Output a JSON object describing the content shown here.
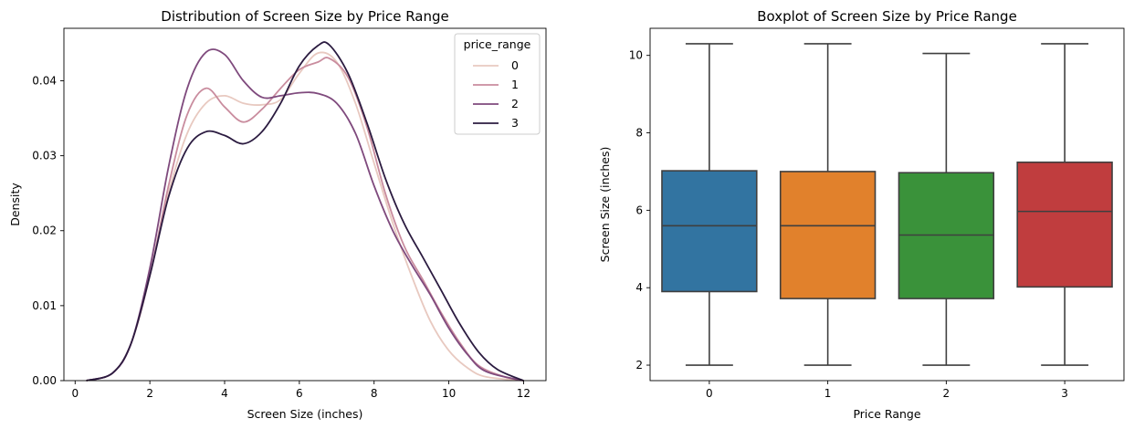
{
  "chart_data": [
    {
      "type": "line",
      "subtype": "kde",
      "title": "Distribution of Screen Size by Price Range",
      "xlabel": "Screen Size (inches)",
      "ylabel": "Density",
      "xlim": [
        -0.3,
        12.6
      ],
      "ylim": [
        0,
        0.047
      ],
      "xticks": [
        0,
        2,
        4,
        6,
        8,
        10,
        12
      ],
      "yticks": [
        0.0,
        0.01,
        0.02,
        0.03,
        0.04
      ],
      "ytick_labels": [
        "0.00",
        "0.01",
        "0.02",
        "0.03",
        "0.04"
      ],
      "legend": {
        "title": "price_range",
        "position": "top-right"
      },
      "series": [
        {
          "name": "0",
          "color": "#e8c9c0",
          "points": [
            [
              0.3,
              0.0
            ],
            [
              1,
              0.001
            ],
            [
              1.5,
              0.005
            ],
            [
              2,
              0.014
            ],
            [
              2.5,
              0.025
            ],
            [
              3,
              0.033
            ],
            [
              3.5,
              0.037
            ],
            [
              4,
              0.038
            ],
            [
              4.5,
              0.037
            ],
            [
              5,
              0.0368
            ],
            [
              5.5,
              0.0375
            ],
            [
              6,
              0.041
            ],
            [
              6.5,
              0.0437
            ],
            [
              7,
              0.0425
            ],
            [
              7.5,
              0.037
            ],
            [
              8,
              0.029
            ],
            [
              8.5,
              0.021
            ],
            [
              9,
              0.014
            ],
            [
              9.5,
              0.008
            ],
            [
              10,
              0.004
            ],
            [
              10.5,
              0.0017
            ],
            [
              11,
              0.0005
            ],
            [
              12,
              0.0
            ]
          ]
        },
        {
          "name": "1",
          "color": "#c98c9e",
          "points": [
            [
              0.3,
              0.0
            ],
            [
              1,
              0.001
            ],
            [
              1.5,
              0.005
            ],
            [
              2,
              0.014
            ],
            [
              2.5,
              0.026
            ],
            [
              3,
              0.0355
            ],
            [
              3.5,
              0.039
            ],
            [
              4,
              0.0365
            ],
            [
              4.5,
              0.0345
            ],
            [
              5,
              0.0362
            ],
            [
              5.5,
              0.039
            ],
            [
              6,
              0.0415
            ],
            [
              6.5,
              0.0425
            ],
            [
              6.8,
              0.043
            ],
            [
              7.3,
              0.0405
            ],
            [
              7.8,
              0.034
            ],
            [
              8.3,
              0.025
            ],
            [
              8.8,
              0.018
            ],
            [
              9.3,
              0.0135
            ],
            [
              9.8,
              0.009
            ],
            [
              10.3,
              0.005
            ],
            [
              10.8,
              0.002
            ],
            [
              11.5,
              0.0005
            ],
            [
              12,
              0.0
            ]
          ]
        },
        {
          "name": "2",
          "color": "#7f4a7d",
          "points": [
            [
              0.3,
              0.0
            ],
            [
              1,
              0.001
            ],
            [
              1.5,
              0.005
            ],
            [
              2,
              0.015
            ],
            [
              2.5,
              0.0285
            ],
            [
              3,
              0.039
            ],
            [
              3.5,
              0.0438
            ],
            [
              4,
              0.0435
            ],
            [
              4.5,
              0.04
            ],
            [
              5,
              0.0378
            ],
            [
              5.5,
              0.038
            ],
            [
              6,
              0.0384
            ],
            [
              6.5,
              0.0383
            ],
            [
              7,
              0.037
            ],
            [
              7.5,
              0.033
            ],
            [
              8,
              0.026
            ],
            [
              8.5,
              0.02
            ],
            [
              9,
              0.0155
            ],
            [
              9.5,
              0.0115
            ],
            [
              10,
              0.007
            ],
            [
              10.5,
              0.0035
            ],
            [
              11,
              0.0012
            ],
            [
              12,
              0.0
            ]
          ]
        },
        {
          "name": "3",
          "color": "#2b1b40",
          "points": [
            [
              0.3,
              0.0
            ],
            [
              1,
              0.001
            ],
            [
              1.5,
              0.005
            ],
            [
              2,
              0.014
            ],
            [
              2.5,
              0.0245
            ],
            [
              3,
              0.031
            ],
            [
              3.5,
              0.0332
            ],
            [
              4,
              0.0327
            ],
            [
              4.5,
              0.0316
            ],
            [
              5,
              0.0332
            ],
            [
              5.5,
              0.037
            ],
            [
              6,
              0.042
            ],
            [
              6.5,
              0.0447
            ],
            [
              6.8,
              0.0448
            ],
            [
              7.3,
              0.041
            ],
            [
              7.8,
              0.0345
            ],
            [
              8.3,
              0.027
            ],
            [
              8.8,
              0.021
            ],
            [
              9.3,
              0.0165
            ],
            [
              9.8,
              0.012
            ],
            [
              10.3,
              0.0075
            ],
            [
              10.8,
              0.0038
            ],
            [
              11.3,
              0.0015
            ],
            [
              12,
              0.0
            ]
          ]
        }
      ]
    },
    {
      "type": "boxplot",
      "title": "Boxplot of Screen Size by Price Range",
      "xlabel": "Price Range",
      "ylabel": "Screen Size (inches)",
      "ylim": [
        1.6,
        10.7
      ],
      "yticks": [
        2,
        4,
        6,
        8,
        10
      ],
      "categories": [
        "0",
        "1",
        "2",
        "3"
      ],
      "boxes": [
        {
          "category": "0",
          "min": 2.0,
          "q1": 3.9,
          "median": 5.6,
          "q3": 7.02,
          "max": 10.3,
          "color": "#3274a1"
        },
        {
          "category": "1",
          "min": 2.0,
          "q1": 3.72,
          "median": 5.6,
          "q3": 7.0,
          "max": 10.3,
          "color": "#e1812c"
        },
        {
          "category": "2",
          "min": 2.0,
          "q1": 3.72,
          "median": 5.36,
          "q3": 6.97,
          "max": 10.05,
          "color": "#3a923a"
        },
        {
          "category": "3",
          "min": 2.0,
          "q1": 4.02,
          "median": 5.97,
          "q3": 7.24,
          "max": 10.3,
          "color": "#c03d3e"
        }
      ]
    }
  ]
}
